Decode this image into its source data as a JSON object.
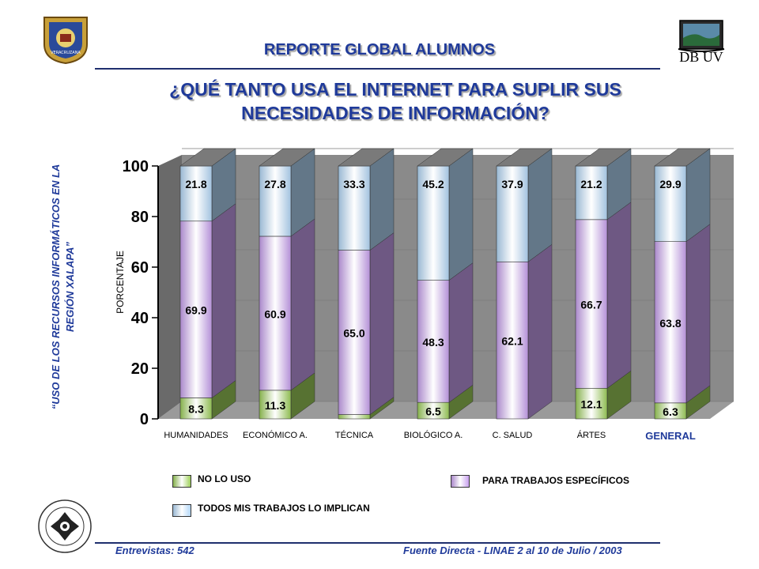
{
  "header": {
    "report_title": "REPORTE GLOBAL ALUMNOS",
    "question_line1": "¿QUÉ TANTO USA EL INTERNET PARA SUPLIR SUS",
    "question_line2": "NECESIDADES DE INFORMACIÓN?",
    "logo_right_text": "DB UV"
  },
  "sidebar": {
    "line1": "“USO DE LOS RECURSOS INFORMÁTICOS EN LA",
    "line2": "REGIÓN XALAPA”"
  },
  "footer": {
    "left": "Entrevistas: 542",
    "right": "Fuente Directa -  LINAE 2 al 10  de Julio / 2003"
  },
  "colors": {
    "title_blue": "#1f3a9a",
    "green": "#9ed05a",
    "purple": "#c8a0ef",
    "light_blue": "#b4d8f8",
    "wall": "#8a8a8a"
  },
  "chart_data": {
    "type": "bar",
    "stacked": true,
    "three_d": true,
    "categories": [
      "HUMANIDADES",
      "ECONÓMICO A.",
      "TÉCNICA",
      "BIOLÓGICO A.",
      "C. SALUD",
      "ÁRTES",
      "GENERAL"
    ],
    "series": [
      {
        "name": "NO LO USO",
        "color": "#9ed05a",
        "values": [
          8.3,
          11.3,
          1.7,
          6.5,
          0,
          12.1,
          6.3
        ],
        "labels": [
          "8.3",
          "11.3",
          "",
          "6.5",
          "",
          "12.1",
          "6.3"
        ]
      },
      {
        "name": "PARA TRABAJOS ESPECÍFICOS",
        "color": "#c8a0ef",
        "values": [
          69.9,
          60.9,
          65.0,
          48.3,
          62.1,
          66.7,
          63.8
        ],
        "labels": [
          "69.9",
          "60.9",
          "65.0",
          "48.3",
          "62.1",
          "66.7",
          "63.8"
        ]
      },
      {
        "name": "TODOS MIS TRABAJOS LO IMPLICAN",
        "color": "#b4d8f8",
        "values": [
          21.8,
          27.8,
          33.3,
          45.2,
          37.9,
          21.2,
          29.9
        ],
        "labels": [
          "21.8",
          "27.8",
          "33.3",
          "45.2",
          "37.9",
          "21.2",
          "29.9"
        ]
      }
    ],
    "ylabel": "PORCENTAJE",
    "ylim": [
      0,
      100
    ],
    "yticks": [
      0,
      20,
      40,
      60,
      80,
      100
    ],
    "legend_position": "bottom"
  }
}
